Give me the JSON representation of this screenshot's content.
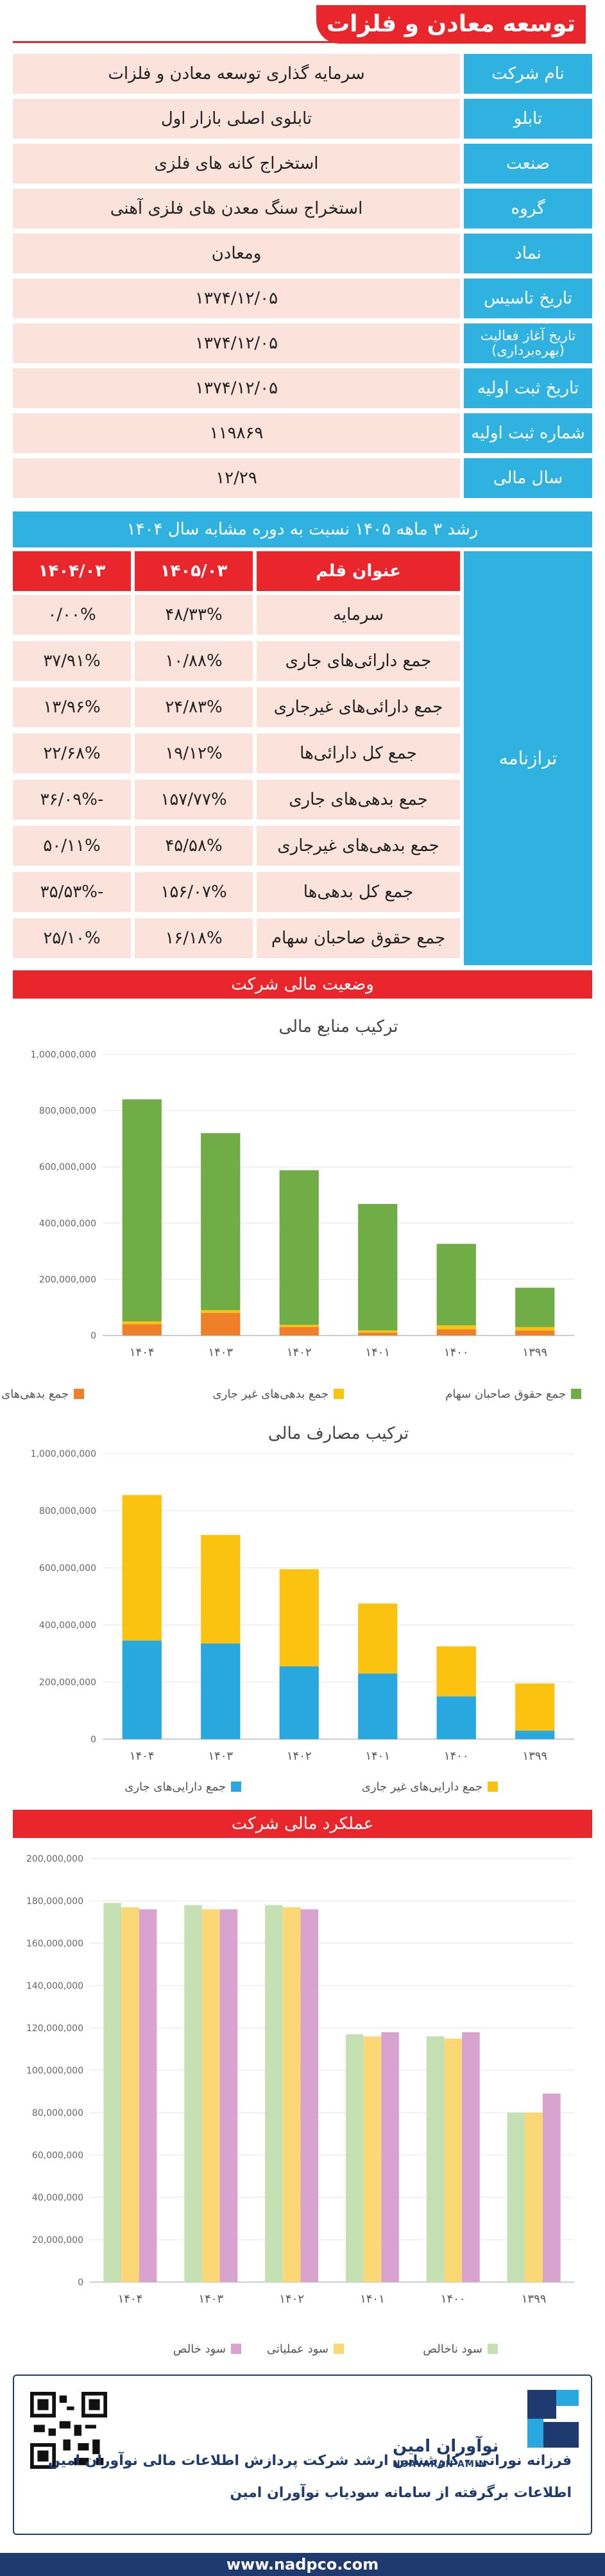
{
  "header": {
    "title": "توسعه معادن و فلزات"
  },
  "info": [
    {
      "label": "نام شرکت",
      "value": "سرمایه گذاری توسعه معادن و فلزات"
    },
    {
      "label": "تابلو",
      "value": "تابلوی اصلی بازار اول"
    },
    {
      "label": "صنعت",
      "value": "استخراج کانه های فلزی"
    },
    {
      "label": "گروه",
      "value": "استخراج سنگ معدن های فلزی آهنی"
    },
    {
      "label": "نماد",
      "value": "ومعادن"
    },
    {
      "label": "تاریخ تاسیس",
      "value": "۱۳۷۴/۱۲/۰۵"
    },
    {
      "label": "تاریخ آغاز فعالیت (بهره‌برداری)",
      "value": "۱۳۷۴/۱۲/۰۵"
    },
    {
      "label": "تاریخ ثبت اولیه",
      "value": "۱۳۷۴/۱۲/۰۵"
    },
    {
      "label": "شماره ثبت اولیه",
      "value": "۱۱۹۸۶۹"
    },
    {
      "label": "سال مالی",
      "value": "۱۲/۲۹"
    }
  ],
  "growth": {
    "title": "رشد ۳ ماهه ۱۴۰۵ نسبت به دوره مشابه سال ۱۴۰۴",
    "section_label": "ترازنامه",
    "columns": [
      "عنوان قلم",
      "۱۴۰۵/۰۳",
      "۱۴۰۴/۰۳"
    ],
    "rows": [
      {
        "item": "سرمایه",
        "v1405": "۴۸/۳۳%",
        "v1404": "۰/۰۰%"
      },
      {
        "item": "جمع دارائی‌های جاری",
        "v1405": "۱۰/۸۸%",
        "v1404": "۳۷/۹۱%"
      },
      {
        "item": "جمع دارائی‌های غیرجاری",
        "v1405": "۲۴/۸۳%",
        "v1404": "۱۳/۹۶%"
      },
      {
        "item": "جمع کل دارائی‌ها",
        "v1405": "۱۹/۱۲%",
        "v1404": "۲۲/۶۸%"
      },
      {
        "item": "جمع بدهی‌های جاری",
        "v1405": "۱۵۷/۷۷%",
        "v1404": "-۳۶/۰۹%"
      },
      {
        "item": "جمع بدهی‌های غیرجاری",
        "v1405": "۴۵/۵۸%",
        "v1404": "۵۰/۱۱%"
      },
      {
        "item": "جمع کل بدهی‌ها",
        "v1405": "۱۵۶/۰۷%",
        "v1404": "-۳۵/۵۳%"
      },
      {
        "item": "جمع حقوق صاحبان سهام",
        "v1405": "۱۶/۱۸%",
        "v1404": "۲۵/۱۰%"
      }
    ]
  },
  "sections": {
    "financial_status": "وضعیت مالی شرکت",
    "performance": "عملکرد مالی شرکت"
  },
  "colors": {
    "red": "#e8262b",
    "blue": "#2fb2e0",
    "pink": "#fbe3dc",
    "orange": "#f07f2a",
    "yellow": "#fbc20f",
    "green": "#70ad47",
    "sky": "#29a8e0",
    "lightgreen": "#c5e0b3",
    "lightyellow": "#fbd776",
    "lilac": "#d9a3cf"
  },
  "chart_data": [
    {
      "type": "bar",
      "stacked": true,
      "title": "ترکیب منابع مالی",
      "categories": [
        "۱۳۹۹",
        "۱۴۰۰",
        "۱۴۰۱",
        "۱۴۰۲",
        "۱۴۰۳",
        "۱۴۰۴"
      ],
      "y_tick_labels": [
        "0",
        "200,000,000",
        "400,000,000",
        "600,000,000",
        "800,000,000",
        "1,000,000,000"
      ],
      "ylim": [
        0,
        1000000000
      ],
      "series": [
        {
          "name": "جمع بدهی‌های جاری",
          "color": "#f07f2a",
          "values": [
            18000000,
            22000000,
            10000000,
            30000000,
            80000000,
            40000000
          ]
        },
        {
          "name": "جمع بدهی‌های غیر جاری",
          "color": "#fbc20f",
          "values": [
            12000000,
            14000000,
            8000000,
            8000000,
            10000000,
            10000000
          ]
        },
        {
          "name": "جمع حقوق صاحبان سهام",
          "color": "#70ad47",
          "values": [
            140000000,
            290000000,
            450000000,
            550000000,
            630000000,
            790000000
          ]
        }
      ],
      "legend": "bottom"
    },
    {
      "type": "bar",
      "stacked": true,
      "title": "ترکیب مصارف مالی",
      "categories": [
        "۱۳۹۹",
        "۱۴۰۰",
        "۱۴۰۱",
        "۱۴۰۲",
        "۱۴۰۳",
        "۱۴۰۴"
      ],
      "y_tick_labels": [
        "0",
        "200,000,000",
        "400,000,000",
        "600,000,000",
        "800,000,000",
        "1,000,000,000"
      ],
      "ylim": [
        0,
        1000000000
      ],
      "series": [
        {
          "name": "جمع دارایی‌های جاری",
          "color": "#29a8e0",
          "values": [
            30000000,
            150000000,
            230000000,
            255000000,
            335000000,
            345000000
          ]
        },
        {
          "name": "جمع دارایی‌های غیر جاری",
          "color": "#fbc20f",
          "values": [
            165000000,
            175000000,
            245000000,
            340000000,
            380000000,
            510000000
          ]
        }
      ],
      "legend": "bottom"
    },
    {
      "type": "bar",
      "stacked": false,
      "title": "",
      "categories": [
        "۱۳۹۹",
        "۱۴۰۰",
        "۱۴۰۱",
        "۱۴۰۲",
        "۱۴۰۳",
        "۱۴۰۴"
      ],
      "y_tick_labels": [
        "0",
        "20,000,000",
        "40,000,000",
        "60,000,000",
        "80,000,000",
        "100,000,000",
        "120,000,000",
        "140,000,000",
        "160,000,000",
        "180,000,000",
        "200,000,000"
      ],
      "ylim": [
        0,
        200000000
      ],
      "series": [
        {
          "name": "سود ناخالص",
          "color": "#c5e0b3",
          "values": [
            80000000,
            116000000,
            117000000,
            178000000,
            178000000,
            179000000
          ]
        },
        {
          "name": "سود عملیاتی",
          "color": "#fbd776",
          "values": [
            80000000,
            115000000,
            116000000,
            177000000,
            176000000,
            177000000
          ]
        },
        {
          "name": "سود خالص",
          "color": "#d9a3cf",
          "values": [
            89000000,
            118000000,
            118000000,
            176000000,
            176000000,
            176000000
          ]
        }
      ],
      "legend": "bottom"
    }
  ],
  "footer": {
    "brand_fa": "نوآوران امین",
    "brand_en": "NOAVARAN AMIN",
    "line1": "فرزانه نورانی - کارشناس ارشد شرکت پردازش اطلاعات مالی نوآوران امین",
    "line2": "اطلاعات برگرفته از سامانه سودیاب نوآوران امین",
    "website": "www.nadpco.com"
  }
}
